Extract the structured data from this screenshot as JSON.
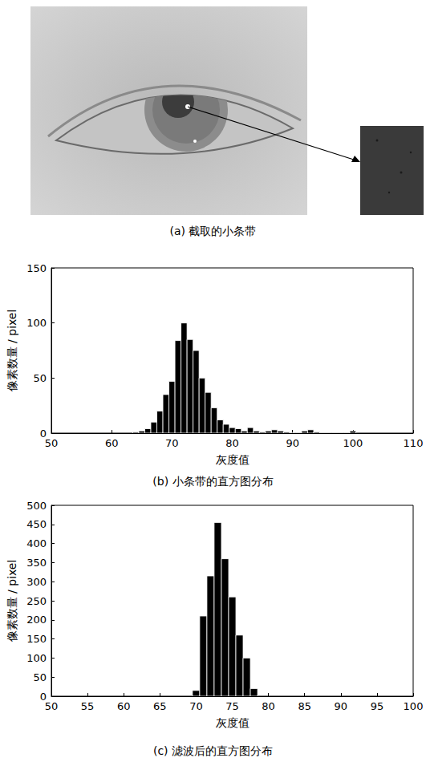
{
  "image": {
    "caption": "(a) 截取的小条带"
  },
  "chart_data": [
    {
      "type": "histogram",
      "title": "(b) 小条带的直方图分布",
      "x_label": "灰度值",
      "y_label": "像素数量 / pixel",
      "bins": [
        63.5,
        64.5,
        65.5,
        66.5,
        67.5,
        68.5,
        69.5,
        70.5,
        71.5,
        72.5,
        73.5,
        74.5,
        75.5,
        76.5,
        77.5,
        78.5,
        79.5,
        80.5,
        81.5,
        82.5,
        83.5,
        84.5,
        85.5,
        86.5,
        87.5,
        88.5,
        89.5,
        90.5,
        91.5,
        92.5,
        93.5,
        94.5,
        95.5,
        96.5,
        97.5,
        98.5,
        99.5,
        100.5
      ],
      "values": [
        1,
        2,
        4,
        10,
        20,
        35,
        47,
        84,
        100,
        85,
        75,
        50,
        37,
        23,
        12,
        8,
        5,
        4,
        2,
        5,
        2,
        1,
        2,
        3,
        2,
        1,
        0,
        0,
        2,
        3,
        1,
        0,
        0,
        0,
        0,
        0,
        2
      ],
      "color": "#000000",
      "xlim": [
        50,
        110
      ],
      "xticks": [
        50,
        60,
        70,
        80,
        90,
        100,
        110
      ],
      "ylim": [
        0,
        150
      ],
      "yticks": [
        0,
        50,
        100,
        150
      ]
    },
    {
      "type": "histogram",
      "title": "(c) 滤波后的直方图分布",
      "x_label": "灰度值",
      "y_label": "像素数量 / pixel",
      "bins": [
        69.5,
        70.5,
        71.5,
        72.5,
        73.5,
        74.5,
        75.5,
        76.5,
        77.5,
        78.5
      ],
      "values": [
        15,
        210,
        315,
        455,
        360,
        260,
        160,
        100,
        20
      ],
      "color": "#000000",
      "xlim": [
        50,
        100
      ],
      "xticks": [
        50,
        55,
        60,
        65,
        70,
        75,
        80,
        85,
        90,
        95,
        100
      ],
      "ylim": [
        0,
        500
      ],
      "yticks": [
        0,
        50,
        100,
        150,
        200,
        250,
        300,
        350,
        400,
        450,
        500
      ]
    }
  ]
}
